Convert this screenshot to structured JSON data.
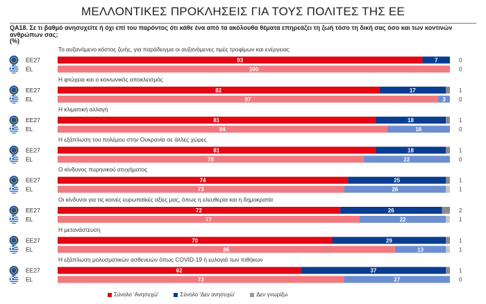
{
  "page": {
    "title": "ΜΕΛΛΟΝΤΙΚΕΣ ΠΡΟΚΛΗΣΕΙΣ ΓΙΑ ΤΟΥΣ ΠΟΛΙΤΕΣ ΤΗΣ ΕΕ",
    "question": "QA18. Σε τι βαθμό ανησυχείτε ή όχι επί του παρόντος ότι κάθε ένα από τα ακόλουθα θέματα επηρεάζει τη ζωή τόσο τη δική σας όσο και των κοντινών ανθρώπων σας;",
    "unit": "(%)"
  },
  "colors": {
    "eu27_worried": "#e30613",
    "el_worried": "#f07a80",
    "eu27_not": "#0a3d91",
    "el_not": "#6d8fd1",
    "dk_eu27": "#8c8c8c",
    "dk_el": "#c8c8c8"
  },
  "chart_data": {
    "type": "bar",
    "orientation": "horizontal-stacked",
    "xlim": [
      0,
      100
    ],
    "row_labels": [
      "EE27",
      "EL"
    ],
    "flag_icons": [
      "eu-flag-icon",
      "greece-flag-icon"
    ],
    "legend": [
      {
        "key": "worried",
        "label": "Σύνολο 'Ανησυχώ'",
        "color": "#e30613"
      },
      {
        "key": "not_worried",
        "label": "Σύνολο 'Δεν ανησυχώ'",
        "color": "#0a3d91"
      },
      {
        "key": "dont_know",
        "label": "Δεν γνωρίζω",
        "color": "#999999"
      }
    ],
    "legend_placement": "bottom",
    "categories": [
      {
        "label": "Το αυξανόμενο κόστος ζωής, για παράδειγμα οι αυξανόμενες τιμές τροφίμων και ενέργειας",
        "eu27": {
          "worried": 93,
          "not_worried": 7,
          "dont_know": 0
        },
        "el": {
          "worried": 100,
          "not_worried": 0,
          "dont_know": 0
        }
      },
      {
        "label": "Η φτώχεια και ο κοινωνικός αποκλεισμός",
        "eu27": {
          "worried": 82,
          "not_worried": 17,
          "dont_know": 1
        },
        "el": {
          "worried": 97,
          "not_worried": 3,
          "dont_know": 0
        }
      },
      {
        "label": "Η κλιματική αλλαγή",
        "eu27": {
          "worried": 81,
          "not_worried": 18,
          "dont_know": 1
        },
        "el": {
          "worried": 84,
          "not_worried": 16,
          "dont_know": 0
        }
      },
      {
        "label": "Η εξάπλωση του πολέμου στην Ουκρανία σε άλλες χώρες",
        "eu27": {
          "worried": 81,
          "not_worried": 18,
          "dont_know": 1
        },
        "el": {
          "worried": 78,
          "not_worried": 22,
          "dont_know": 0
        }
      },
      {
        "label": "Ο κίνδυνος πυρηνικού ατυχήματος",
        "eu27": {
          "worried": 74,
          "not_worried": 25,
          "dont_know": 1
        },
        "el": {
          "worried": 73,
          "not_worried": 26,
          "dont_know": 1
        }
      },
      {
        "label": "Οι κίνδυνοι για τις κοινές ευρωπαϊκές αξίες μας, όπως η ελευθερία και η δημοκρατία",
        "eu27": {
          "worried": 72,
          "not_worried": 26,
          "dont_know": 2
        },
        "el": {
          "worried": 77,
          "not_worried": 22,
          "dont_know": 1
        }
      },
      {
        "label": "Η μετανάστευση",
        "eu27": {
          "worried": 70,
          "not_worried": 29,
          "dont_know": 1
        },
        "el": {
          "worried": 86,
          "not_worried": 13,
          "dont_know": 1
        }
      },
      {
        "label": "Η εξάπλωση μολυσματικών ασθενειών όπως COVID-19 ή ευλογιά των πιθήκων",
        "eu27": {
          "worried": 62,
          "not_worried": 37,
          "dont_know": 1
        },
        "el": {
          "worried": 73,
          "not_worried": 27,
          "dont_know": 0
        }
      }
    ]
  }
}
